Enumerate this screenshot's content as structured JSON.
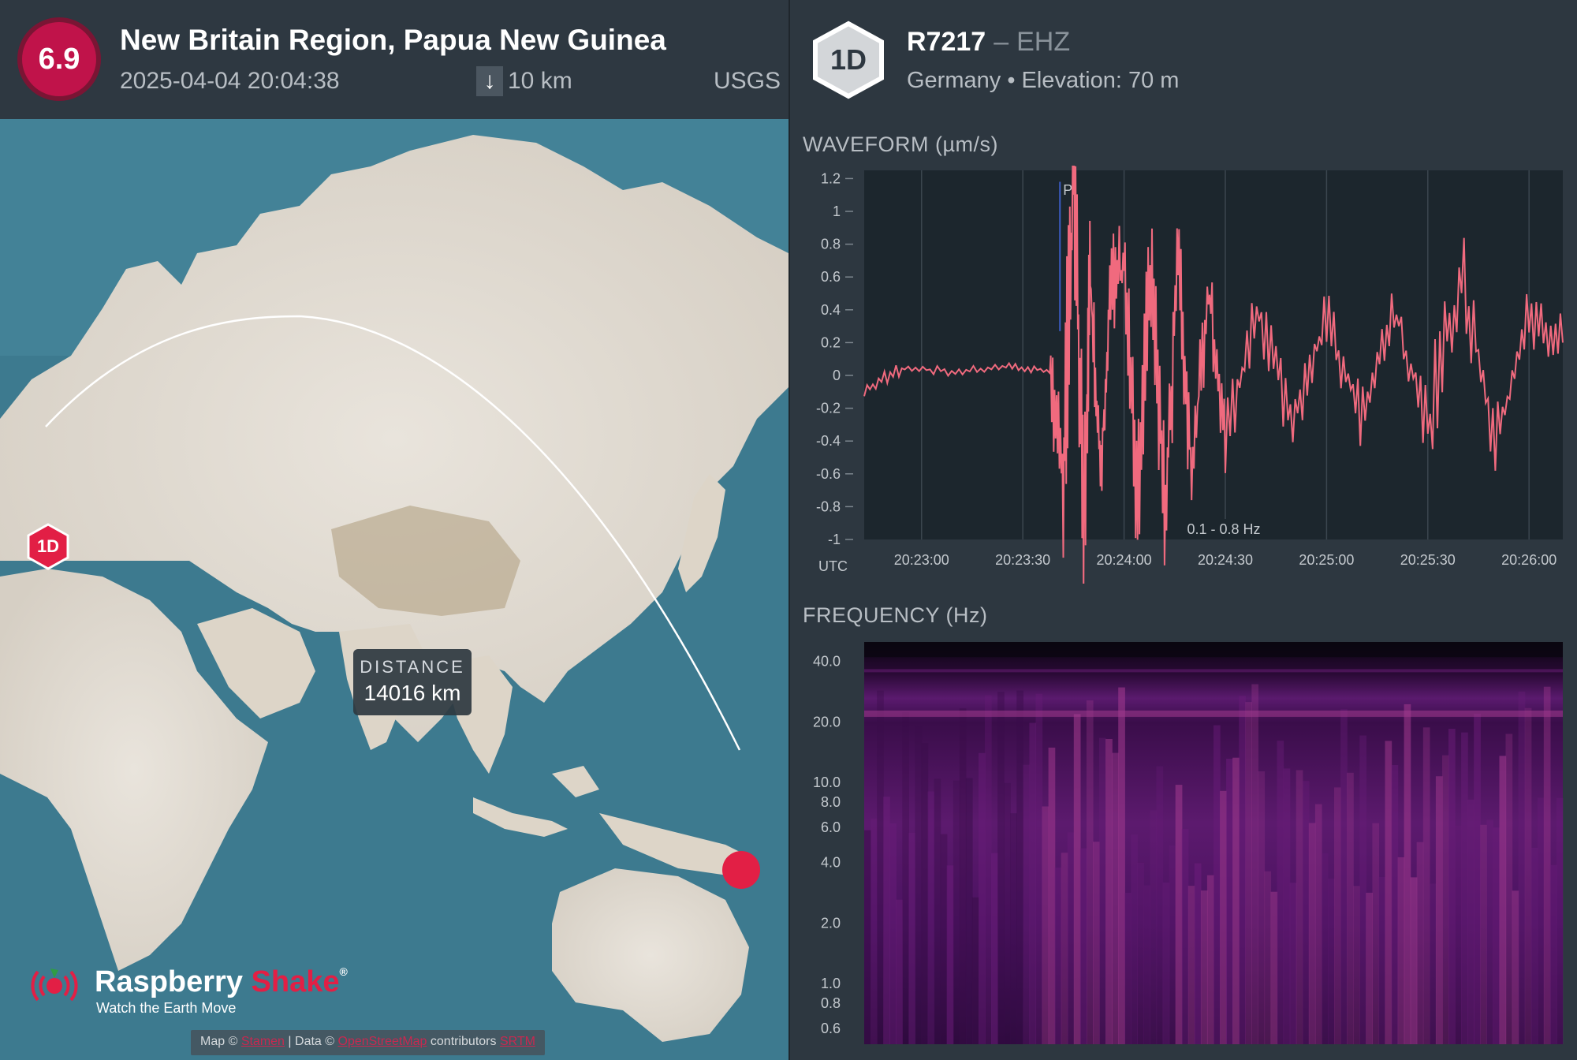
{
  "event": {
    "magnitude": "6.9",
    "title": "New Britain Region, Papua New Guinea",
    "datetime": "2025-04-04 20:04:38",
    "depth_icon": "arrow-down-icon",
    "depth": "10 km",
    "source": "USGS",
    "magnitude_color": "#c0134a"
  },
  "map": {
    "distance_label": "DISTANCE",
    "distance_value": "14016 km",
    "station_marker_label": "1D",
    "epicenter_color": "#e21f45"
  },
  "brand": {
    "name_part1": "Raspberry",
    "name_part2": "Shake",
    "registered": "®",
    "tagline": "Watch the Earth Move"
  },
  "attribution": {
    "map_prefix": "Map ©",
    "map_link": "Stamen",
    "data_prefix": "| Data ©",
    "data_link": "OpenStreetMap",
    "contributors": "contributors",
    "srtm_link": "SRTM"
  },
  "station": {
    "hex_label": "1D",
    "id": "R7217",
    "separator": "–",
    "channel": "EHZ",
    "meta": "Germany • Elevation: 70 m"
  },
  "waveform": {
    "title": "WAVEFORM (µm/s)",
    "utc_label": "UTC",
    "filter_label": "0.1 - 0.8 Hz",
    "phase_label": "P",
    "trace_color": "#f06a7e"
  },
  "frequency": {
    "title": "FREQUENCY (Hz)"
  },
  "chart_data": [
    {
      "type": "line",
      "title": "WAVEFORM (µm/s)",
      "xlabel": "UTC",
      "ylabel": "",
      "ylim": [
        -1,
        1.25
      ],
      "yticks": [
        "1.2",
        "1",
        "0.8",
        "0.6",
        "0.4",
        "0.2",
        "0",
        "-0.2",
        "-0.4",
        "-0.6",
        "-0.8",
        "-1"
      ],
      "xticks": [
        "20:23:00",
        "20:23:30",
        "20:24:00",
        "20:24:30",
        "20:25:00",
        "20:25:30",
        "20:26:00"
      ],
      "grid": true,
      "annotation": "0.1 - 0.8 Hz",
      "phase_pick": {
        "label": "P",
        "x": "20:23:41"
      },
      "series": [
        {
          "x": [
            "20:22:43",
            "20:22:55",
            "20:23:10",
            "20:23:25",
            "20:23:38",
            "20:23:42",
            "20:23:45",
            "20:23:48",
            "20:23:50",
            "20:23:53",
            "20:23:56",
            "20:24:00",
            "20:24:04",
            "20:24:08",
            "20:24:12",
            "20:24:16",
            "20:24:20",
            "20:24:25",
            "20:24:30",
            "20:24:40",
            "20:24:50",
            "20:25:00",
            "20:25:10",
            "20:25:20",
            "20:25:30",
            "20:25:40",
            "20:25:50",
            "20:26:00",
            "20:26:10"
          ],
          "values": [
            -0.1,
            0.05,
            0.02,
            0.05,
            0.03,
            -0.6,
            1.25,
            -1.0,
            0.6,
            -0.6,
            0.5,
            0.65,
            -0.8,
            0.75,
            -0.85,
            0.7,
            -0.6,
            0.55,
            -0.4,
            0.4,
            -0.3,
            0.35,
            -0.25,
            0.4,
            -0.3,
            0.6,
            -0.45,
            0.35,
            0.2
          ]
        }
      ]
    },
    {
      "type": "heatmap",
      "title": "FREQUENCY (Hz)",
      "yticks": [
        "40.0",
        "20.0",
        "10.0",
        "8.0",
        "6.0",
        "4.0",
        "2.0",
        "1.0",
        "0.8",
        "0.6"
      ],
      "ylim": [
        0.5,
        50
      ],
      "yscale": "log",
      "colormap": [
        "#0a0610",
        "#3a0d4a",
        "#6b1d7a",
        "#a23a8e",
        "#d2577e"
      ]
    }
  ]
}
